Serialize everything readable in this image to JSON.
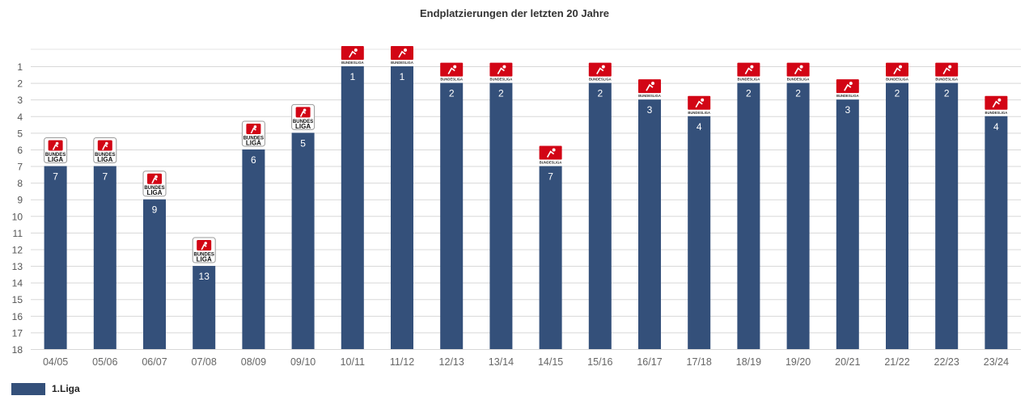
{
  "chart_data": {
    "type": "bar",
    "title": "Endplatzierungen der letzten 20 Jahre",
    "categories": [
      "04/05",
      "05/06",
      "06/07",
      "07/08",
      "08/09",
      "09/10",
      "10/11",
      "11/12",
      "12/13",
      "13/14",
      "14/15",
      "15/16",
      "16/17",
      "17/18",
      "18/19",
      "19/20",
      "20/21",
      "21/22",
      "22/23",
      "23/24"
    ],
    "series": [
      {
        "name": "1.Liga",
        "values": [
          7,
          7,
          9,
          13,
          6,
          5,
          1,
          1,
          2,
          2,
          7,
          2,
          3,
          4,
          2,
          2,
          3,
          2,
          2,
          4
        ],
        "color": "#34507a",
        "league_logo": "bundesliga-logo-icon"
      }
    ],
    "y_axis": {
      "reversed": true,
      "range": [
        1,
        18
      ],
      "ticks": [
        1,
        2,
        3,
        4,
        5,
        6,
        7,
        8,
        9,
        10,
        11,
        12,
        13,
        14,
        15,
        16,
        17,
        18
      ]
    },
    "grid": true,
    "legend": "bottom-left",
    "logo_text": {
      "old_line1": "BUNDES",
      "old_line2": "LIGA",
      "new": "BUNDESLIGA"
    }
  }
}
